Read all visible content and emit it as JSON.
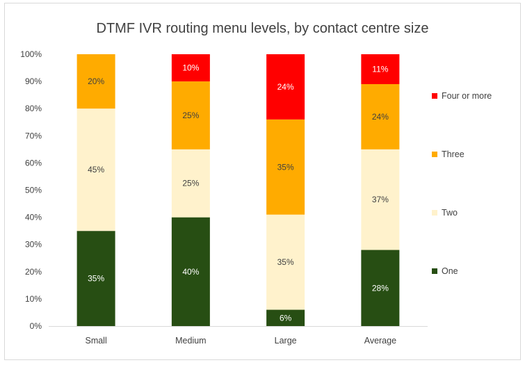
{
  "chart_data": {
    "type": "bar",
    "stacked": true,
    "percent_stacked": true,
    "title": "DTMF IVR routing menu levels, by contact centre size",
    "xlabel": "",
    "ylabel": "",
    "ylim": [
      0,
      100
    ],
    "yticks": [
      "0%",
      "10%",
      "20%",
      "30%",
      "40%",
      "50%",
      "60%",
      "70%",
      "80%",
      "90%",
      "100%"
    ],
    "categories": [
      "Small",
      "Medium",
      "Large",
      "Average"
    ],
    "series": [
      {
        "name": "One",
        "color": "#274e13",
        "label_color": "#ffffff",
        "values": [
          35,
          40,
          6,
          28
        ],
        "labels": [
          "35%",
          "40%",
          "6%",
          "28%"
        ]
      },
      {
        "name": "Two",
        "color": "#fff2cc",
        "label_color": "#404040",
        "values": [
          45,
          25,
          35,
          37
        ],
        "labels": [
          "45%",
          "25%",
          "35%",
          "37%"
        ]
      },
      {
        "name": "Three",
        "color": "#ffab00",
        "label_color": "#404040",
        "values": [
          20,
          25,
          35,
          24
        ],
        "labels": [
          "20%",
          "25%",
          "35%",
          "24%"
        ]
      },
      {
        "name": "Four or more",
        "color": "#ff0000",
        "label_color": "#ffffff",
        "values": [
          0,
          10,
          24,
          11
        ],
        "labels": [
          "",
          "10%",
          "24%",
          "11%"
        ]
      }
    ],
    "legend": {
      "position": "right",
      "order": [
        "Four or more",
        "Three",
        "Two",
        "One"
      ]
    },
    "grid": false
  }
}
